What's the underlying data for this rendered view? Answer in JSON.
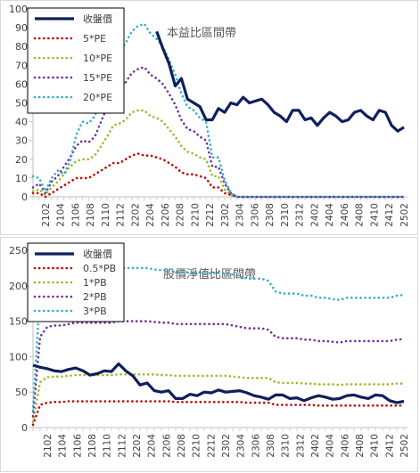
{
  "chart_data": [
    {
      "type": "line",
      "title": "本益比區間帶",
      "ylim": [
        0,
        100
      ],
      "yticks": [
        0,
        10,
        20,
        30,
        40,
        50,
        60,
        70,
        80,
        90,
        100
      ],
      "xtick_labels": [
        "2102",
        "2104",
        "2106",
        "2108",
        "2110",
        "2112",
        "2202",
        "2204",
        "2206",
        "2208",
        "2210",
        "2212",
        "2302",
        "2304",
        "2306",
        "2308",
        "2310",
        "2312",
        "2402",
        "2404",
        "2406",
        "2408",
        "2410",
        "2412",
        "2502"
      ],
      "legend": "top-left",
      "grid": false,
      "series": [
        {
          "name": "收盤價",
          "color": "#0f1f5c",
          "style": "solid",
          "values": [
            null,
            null,
            null,
            null,
            null,
            null,
            null,
            null,
            null,
            null,
            null,
            null,
            null,
            null,
            null,
            null,
            null,
            null,
            null,
            null,
            88,
            79,
            71,
            59,
            63,
            52,
            50,
            48,
            41,
            41,
            47,
            45,
            50,
            49,
            53,
            50,
            51,
            52,
            49,
            45,
            43,
            40,
            46,
            46,
            41,
            42,
            38,
            42,
            45,
            43,
            40,
            41,
            45,
            46,
            43,
            41,
            46,
            45,
            38,
            35,
            37
          ]
        },
        {
          "name": "5*PE",
          "color": "#c00000",
          "style": "dots",
          "values": [
            2,
            2,
            0,
            2,
            4,
            6,
            8,
            10,
            10,
            10,
            12,
            14,
            16,
            18,
            18,
            20,
            22,
            23,
            22,
            22,
            21,
            20,
            18,
            16,
            13,
            12,
            12,
            11,
            10,
            5,
            5,
            2,
            1,
            0,
            0,
            0,
            0,
            0,
            0,
            0,
            0,
            0,
            0,
            0,
            0,
            0,
            0,
            0,
            0,
            0,
            0,
            0,
            0,
            0,
            0,
            0,
            0,
            0,
            0,
            0,
            0
          ]
        },
        {
          "name": "10*PE",
          "color": "#9bbb2a",
          "style": "dots",
          "values": [
            3,
            4,
            1,
            5,
            8,
            12,
            16,
            19,
            20,
            20,
            22,
            27,
            32,
            38,
            39,
            41,
            45,
            46,
            46,
            43,
            42,
            40,
            36,
            32,
            27,
            24,
            23,
            21,
            20,
            11,
            11,
            4,
            1,
            0,
            0,
            0,
            0,
            0,
            0,
            0,
            0,
            0,
            0,
            0,
            0,
            0,
            0,
            0,
            0,
            0,
            0,
            0,
            0,
            0,
            0,
            0,
            0,
            0,
            0,
            0,
            0
          ]
        },
        {
          "name": "15*PE",
          "color": "#7030a0",
          "style": "dots",
          "values": [
            5,
            7,
            2,
            8,
            11,
            16,
            21,
            27,
            30,
            29,
            32,
            40,
            48,
            57,
            58,
            61,
            66,
            68,
            69,
            65,
            63,
            60,
            55,
            49,
            41,
            36,
            35,
            32,
            30,
            16,
            16,
            7,
            2,
            0,
            0,
            0,
            0,
            0,
            0,
            0,
            0,
            0,
            0,
            0,
            0,
            0,
            0,
            0,
            0,
            0,
            0,
            0,
            0,
            0,
            0,
            0,
            0,
            0,
            0,
            0,
            0
          ]
        },
        {
          "name": "20*PE",
          "color": "#31b0c6",
          "style": "dots",
          "values": [
            11,
            10,
            3,
            10,
            14,
            12,
            19,
            33,
            40,
            39,
            43,
            54,
            64,
            76,
            77,
            82,
            88,
            91,
            92,
            87,
            84,
            80,
            73,
            65,
            55,
            48,
            46,
            42,
            40,
            21,
            21,
            9,
            2,
            0,
            0,
            0,
            0,
            0,
            0,
            0,
            0,
            0,
            0,
            0,
            0,
            0,
            0,
            0,
            0,
            0,
            0,
            0,
            0,
            0,
            0,
            0,
            0,
            0,
            0,
            0,
            0
          ]
        }
      ]
    },
    {
      "type": "line",
      "title": "股價淨值比區間帶",
      "ylim": [
        0,
        250
      ],
      "yticks": [
        0,
        50,
        100,
        150,
        200,
        250
      ],
      "xtick_labels": [
        "2102",
        "2104",
        "2106",
        "2108",
        "2110",
        "2112",
        "2202",
        "2204",
        "2206",
        "2208",
        "2210",
        "2212",
        "2302",
        "2304",
        "2306",
        "2308",
        "2310",
        "2312",
        "2402",
        "2404",
        "2406",
        "2408",
        "2410",
        "2412",
        "2502"
      ],
      "legend": "top-left",
      "grid": false,
      "series": [
        {
          "name": "收盤價",
          "color": "#0f1f5c",
          "style": "solid",
          "values": [
            88,
            85,
            83,
            80,
            79,
            82,
            84,
            80,
            74,
            76,
            80,
            79,
            90,
            80,
            73,
            60,
            63,
            52,
            50,
            52,
            41,
            41,
            47,
            45,
            50,
            49,
            53,
            50,
            51,
            52,
            49,
            45,
            43,
            40,
            46,
            46,
            41,
            42,
            38,
            42,
            45,
            43,
            40,
            41,
            45,
            46,
            43,
            41,
            46,
            45,
            38,
            35,
            37
          ]
        },
        {
          "name": "0.5*PB",
          "color": "#c00000",
          "style": "dots",
          "values": [
            4,
            32,
            35,
            36,
            36,
            37,
            37,
            37,
            37,
            37,
            37,
            37,
            37,
            37,
            37,
            37,
            37,
            37,
            37,
            37,
            36,
            36,
            36,
            36,
            36,
            36,
            36,
            36,
            36,
            36,
            35,
            35,
            35,
            35,
            32,
            32,
            32,
            32,
            32,
            32,
            31,
            31,
            31,
            31,
            31,
            31,
            31,
            31,
            31,
            31,
            31,
            31,
            31
          ]
        },
        {
          "name": "1*PB",
          "color": "#9bbb2a",
          "style": "dots",
          "values": [
            8,
            64,
            71,
            72,
            72,
            73,
            74,
            74,
            74,
            74,
            74,
            74,
            75,
            75,
            75,
            75,
            75,
            75,
            74,
            74,
            73,
            73,
            73,
            73,
            73,
            73,
            73,
            73,
            72,
            71,
            70,
            70,
            70,
            70,
            64,
            63,
            63,
            63,
            62,
            62,
            61,
            61,
            61,
            60,
            61,
            61,
            61,
            61,
            61,
            61,
            61,
            62,
            62
          ]
        },
        {
          "name": "2*PB",
          "color": "#7030a0",
          "style": "dots",
          "values": [
            16,
            128,
            142,
            144,
            144,
            146,
            148,
            148,
            148,
            148,
            148,
            148,
            150,
            150,
            150,
            150,
            150,
            149,
            148,
            148,
            146,
            146,
            146,
            146,
            146,
            146,
            146,
            146,
            144,
            142,
            140,
            140,
            140,
            138,
            128,
            126,
            126,
            126,
            124,
            124,
            122,
            122,
            121,
            120,
            122,
            122,
            122,
            122,
            122,
            122,
            122,
            124,
            125
          ]
        },
        {
          "name": "3*PB",
          "color": "#31b0c6",
          "style": "dots",
          "values": [
            24,
            192,
            213,
            216,
            216,
            219,
            222,
            222,
            222,
            222,
            222,
            222,
            225,
            225,
            225,
            225,
            225,
            223,
            222,
            222,
            219,
            219,
            219,
            219,
            218,
            218,
            218,
            218,
            216,
            213,
            210,
            210,
            210,
            207,
            192,
            189,
            189,
            189,
            186,
            186,
            183,
            183,
            181,
            180,
            183,
            183,
            183,
            183,
            183,
            183,
            183,
            186,
            187
          ]
        }
      ]
    }
  ]
}
